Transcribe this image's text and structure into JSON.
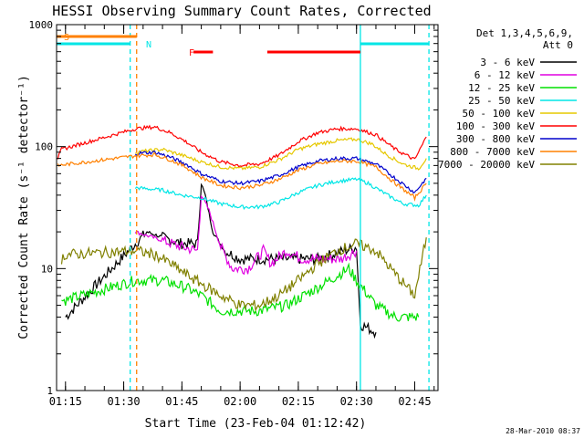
{
  "chart_data": {
    "type": "line",
    "title": "HESSI Observing Summary Count Rates, Corrected",
    "xlabel": "Start Time (23-Feb-04 01:12:42)",
    "ylabel": "Corrected Count Rate (s⁻¹ detector⁻¹)",
    "yscale": "log",
    "ylim": [
      1,
      1000
    ],
    "xlim": [
      "01:12:42",
      "02:51:00"
    ],
    "x_ticks": [
      "01:15",
      "01:30",
      "01:45",
      "02:00",
      "02:15",
      "02:30",
      "02:45"
    ],
    "y_ticks": [
      "1",
      "10",
      "100",
      "1000"
    ],
    "legend_header": [
      "Det 1,3,4,5,6,9,",
      "Att 0"
    ],
    "legend_position": "right",
    "timestamp": "28-Mar-2010 08:37",
    "flags": {
      "saa": {
        "label": "S",
        "color": "#ff8000",
        "intervals": [
          [
            "01:12:42",
            "01:33:20"
          ]
        ]
      },
      "night": {
        "label": "N",
        "color": "#00e6e6",
        "intervals": [
          [
            "01:12:42",
            "01:31:40"
          ],
          [
            "02:31:00",
            "02:48:40"
          ]
        ]
      },
      "flare": {
        "label": "F",
        "color": "#ff0000",
        "intervals": [
          [
            "01:48:00",
            "01:53:00"
          ],
          [
            "02:07:00",
            "02:31:00"
          ]
        ]
      }
    },
    "vlines": [
      {
        "time": "01:31:40",
        "color": "#00e6e6",
        "style": "dashed"
      },
      {
        "time": "01:33:20",
        "color": "#ff8000",
        "style": "dashed"
      },
      {
        "time": "02:31:00",
        "color": "#00e6e6",
        "style": "solid"
      },
      {
        "time": "02:48:40",
        "color": "#00e6e6",
        "style": "dashed"
      }
    ],
    "series": [
      {
        "name": "3 - 6 keV",
        "color": "#000000",
        "points": [
          [
            "01:15",
            4
          ],
          [
            "01:33",
            16
          ],
          [
            "01:36",
            20
          ],
          [
            "01:40",
            18
          ],
          [
            "01:45",
            16
          ],
          [
            "01:49",
            16
          ],
          [
            "01:50",
            50
          ],
          [
            "01:51",
            40
          ],
          [
            "01:53",
            20
          ],
          [
            "01:56",
            14
          ],
          [
            "02:00",
            12
          ],
          [
            "02:10",
            12
          ],
          [
            "02:20",
            12
          ],
          [
            "02:30",
            15
          ],
          [
            "02:31",
            3.5
          ],
          [
            "02:35",
            3
          ]
        ]
      },
      {
        "name": "6 - 12 keV",
        "color": "#e000e0",
        "points": [
          [
            "01:33",
            20
          ],
          [
            "01:40",
            17
          ],
          [
            "01:45",
            15
          ],
          [
            "01:49",
            14
          ],
          [
            "01:50",
            40
          ],
          [
            "01:52",
            30
          ],
          [
            "01:55",
            15
          ],
          [
            "01:58",
            10
          ],
          [
            "02:02",
            10
          ],
          [
            "02:06",
            14
          ],
          [
            "02:08",
            11
          ],
          [
            "02:12",
            14
          ],
          [
            "02:16",
            12
          ],
          [
            "02:20",
            12
          ],
          [
            "02:26",
            12
          ],
          [
            "02:30",
            14
          ]
        ]
      },
      {
        "name": "12 - 25 keV",
        "color": "#00e000",
        "points": [
          [
            "01:14",
            5.5
          ],
          [
            "01:15",
            5.5
          ],
          [
            "01:33",
            8
          ],
          [
            "01:40",
            8
          ],
          [
            "01:46",
            7
          ],
          [
            "01:50",
            6
          ],
          [
            "01:55",
            4.5
          ],
          [
            "02:05",
            4.5
          ],
          [
            "02:12",
            5
          ],
          [
            "02:20",
            7
          ],
          [
            "02:28",
            10
          ],
          [
            "02:30",
            8
          ],
          [
            "02:35",
            5
          ],
          [
            "02:40",
            4
          ],
          [
            "02:46",
            4
          ]
        ]
      },
      {
        "name": "25 - 50 keV",
        "color": "#00e6e6",
        "points": [
          [
            "01:33",
            46
          ],
          [
            "01:40",
            44
          ],
          [
            "01:45",
            40
          ],
          [
            "01:50",
            38
          ],
          [
            "01:55",
            34
          ],
          [
            "02:00",
            32
          ],
          [
            "02:05",
            32
          ],
          [
            "02:10",
            35
          ],
          [
            "02:15",
            42
          ],
          [
            "02:20",
            48
          ],
          [
            "02:25",
            52
          ],
          [
            "02:30",
            54
          ],
          [
            "02:33",
            50
          ],
          [
            "02:38",
            40
          ],
          [
            "02:42",
            34
          ],
          [
            "02:46",
            33
          ],
          [
            "02:48",
            40
          ]
        ]
      },
      {
        "name": "50 - 100 keV",
        "color": "#e6c800",
        "points": [
          [
            "01:33",
            90
          ],
          [
            "01:40",
            95
          ],
          [
            "01:45",
            85
          ],
          [
            "01:50",
            75
          ],
          [
            "01:55",
            68
          ],
          [
            "02:00",
            66
          ],
          [
            "02:05",
            68
          ],
          [
            "02:10",
            78
          ],
          [
            "02:15",
            95
          ],
          [
            "02:20",
            105
          ],
          [
            "02:25",
            112
          ],
          [
            "02:30",
            115
          ],
          [
            "02:34",
            105
          ],
          [
            "02:38",
            85
          ],
          [
            "02:42",
            72
          ],
          [
            "02:46",
            66
          ],
          [
            "02:48",
            80
          ]
        ]
      },
      {
        "name": "100 - 300 keV",
        "color": "#ff0000",
        "points": [
          [
            "01:13",
            80
          ],
          [
            "01:14",
            95
          ],
          [
            "01:33",
            140
          ],
          [
            "01:38",
            145
          ],
          [
            "01:42",
            130
          ],
          [
            "01:46",
            110
          ],
          [
            "01:50",
            90
          ],
          [
            "01:55",
            75
          ],
          [
            "02:00",
            70
          ],
          [
            "02:05",
            72
          ],
          [
            "02:10",
            85
          ],
          [
            "02:15",
            110
          ],
          [
            "02:20",
            130
          ],
          [
            "02:25",
            140
          ],
          [
            "02:30",
            140
          ],
          [
            "02:35",
            125
          ],
          [
            "02:40",
            95
          ],
          [
            "02:45",
            78
          ],
          [
            "02:48",
            120
          ]
        ]
      },
      {
        "name": "300 - 800 keV",
        "color": "#0000cc",
        "points": [
          [
            "01:33",
            88
          ],
          [
            "01:38",
            90
          ],
          [
            "01:42",
            82
          ],
          [
            "01:46",
            72
          ],
          [
            "01:50",
            60
          ],
          [
            "01:55",
            52
          ],
          [
            "02:00",
            50
          ],
          [
            "02:05",
            52
          ],
          [
            "02:10",
            58
          ],
          [
            "02:15",
            68
          ],
          [
            "02:20",
            76
          ],
          [
            "02:25",
            80
          ],
          [
            "02:30",
            80
          ],
          [
            "02:35",
            72
          ],
          [
            "02:40",
            55
          ],
          [
            "02:45",
            42
          ],
          [
            "02:48",
            55
          ]
        ]
      },
      {
        "name": "800 - 7000 keV",
        "color": "#ff8000",
        "points": [
          [
            "01:13",
            70
          ],
          [
            "01:33",
            84
          ],
          [
            "01:38",
            86
          ],
          [
            "01:42",
            78
          ],
          [
            "01:46",
            68
          ],
          [
            "01:50",
            56
          ],
          [
            "01:55",
            48
          ],
          [
            "02:00",
            46
          ],
          [
            "02:05",
            48
          ],
          [
            "02:10",
            54
          ],
          [
            "02:15",
            64
          ],
          [
            "02:20",
            72
          ],
          [
            "02:25",
            76
          ],
          [
            "02:30",
            76
          ],
          [
            "02:35",
            68
          ],
          [
            "02:40",
            50
          ],
          [
            "02:45",
            38
          ],
          [
            "02:48",
            50
          ]
        ]
      },
      {
        "name": "7000 - 20000 keV",
        "color": "#808000",
        "points": [
          [
            "01:14",
            12
          ],
          [
            "01:15",
            13
          ],
          [
            "01:33",
            14
          ],
          [
            "01:38",
            13
          ],
          [
            "01:42",
            11
          ],
          [
            "01:46",
            9
          ],
          [
            "01:50",
            7.5
          ],
          [
            "01:55",
            6
          ],
          [
            "02:00",
            5
          ],
          [
            "02:05",
            5
          ],
          [
            "02:10",
            6
          ],
          [
            "02:15",
            8
          ],
          [
            "02:20",
            11
          ],
          [
            "02:25",
            14
          ],
          [
            "02:30",
            16
          ],
          [
            "02:35",
            14
          ],
          [
            "02:40",
            9
          ],
          [
            "02:45",
            6
          ],
          [
            "02:48",
            18
          ]
        ]
      }
    ]
  }
}
